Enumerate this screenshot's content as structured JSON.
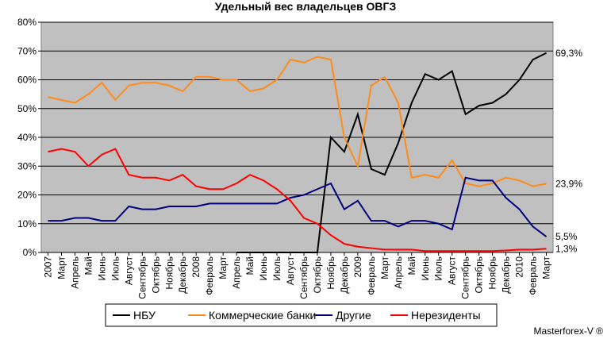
{
  "chart_data": {
    "type": "line",
    "title": "Удельный вес владельцев ОВГЗ",
    "source": "Masterforex-V ®",
    "categories": [
      "2007",
      "Март",
      "Апрель",
      "Май",
      "Июнь",
      "Июль",
      "Август",
      "Сентябрь",
      "Октябрь",
      "Ноябрь",
      "Декабрь",
      "2008",
      "Февраль",
      "Март",
      "Апрель",
      "Май",
      "Июнь",
      "Июль",
      "Август",
      "Сентябрь",
      "Октябрь",
      "Ноябрь",
      "Декабрь",
      "2009",
      "Февраль",
      "Март",
      "Апрель",
      "Май",
      "Июнь",
      "Июль",
      "Август",
      "Сентябрь",
      "Октябрь",
      "Ноябрь",
      "Декабрь",
      "2010",
      "Февраль",
      "Март"
    ],
    "series": [
      {
        "name": "НБУ",
        "color": "#000000",
        "values": [
          null,
          null,
          null,
          null,
          null,
          null,
          null,
          null,
          null,
          null,
          null,
          null,
          null,
          null,
          0,
          0,
          0,
          0,
          0,
          0,
          0,
          40,
          35,
          48,
          29,
          27,
          38,
          52,
          62,
          60,
          63,
          48,
          51,
          52,
          55,
          60,
          67,
          69.3
        ],
        "value_labels": [
          null,
          null,
          null,
          null,
          null,
          null,
          null,
          null,
          null,
          null,
          null,
          null,
          null,
          null,
          null,
          null,
          null,
          null,
          null,
          null,
          null,
          null,
          null,
          null,
          null,
          null,
          null,
          null,
          null,
          null,
          null,
          null,
          null,
          null,
          null,
          null,
          null,
          "69,3%"
        ]
      },
      {
        "name": "Коммерческие банки",
        "color": "#ff8c1a",
        "values": [
          54,
          53,
          52,
          55,
          59,
          53,
          58,
          59,
          59,
          58,
          56,
          61,
          61,
          60,
          60,
          56,
          57,
          60,
          67,
          66,
          68,
          67,
          40,
          30,
          58,
          61,
          52,
          26,
          27,
          26,
          32,
          24,
          23,
          24,
          26,
          25,
          23,
          23.9
        ],
        "value_labels": [
          null,
          null,
          null,
          null,
          null,
          null,
          null,
          null,
          null,
          null,
          null,
          null,
          null,
          null,
          null,
          null,
          null,
          null,
          null,
          null,
          null,
          null,
          null,
          null,
          null,
          null,
          null,
          null,
          null,
          null,
          null,
          null,
          null,
          null,
          null,
          null,
          null,
          "23,9%"
        ]
      },
      {
        "name": "Другие",
        "color": "#000080",
        "values": [
          11,
          11,
          12,
          12,
          11,
          11,
          16,
          15,
          15,
          16,
          16,
          16,
          17,
          17,
          17,
          17,
          17,
          17,
          19,
          20,
          22,
          24,
          15,
          18,
          11,
          11,
          9,
          11,
          11,
          10,
          8,
          26,
          25,
          25,
          19,
          15,
          9,
          5.5
        ],
        "value_labels": [
          null,
          null,
          null,
          null,
          null,
          null,
          null,
          null,
          null,
          null,
          null,
          null,
          null,
          null,
          null,
          null,
          null,
          null,
          null,
          null,
          null,
          null,
          null,
          null,
          null,
          null,
          null,
          null,
          null,
          null,
          null,
          null,
          null,
          null,
          null,
          null,
          null,
          "5,5%"
        ]
      },
      {
        "name": "Нерезиденты",
        "color": "#ff0000",
        "values": [
          35,
          36,
          35,
          30,
          34,
          36,
          27,
          26,
          26,
          25,
          27,
          23,
          22,
          22,
          24,
          27,
          25,
          22,
          18,
          12,
          10,
          6,
          3,
          2,
          1.5,
          1,
          1,
          1,
          0.5,
          0.5,
          0.5,
          0.5,
          0.5,
          0.5,
          0.7,
          1,
          1,
          1.3
        ],
        "value_labels": [
          null,
          null,
          null,
          null,
          null,
          null,
          null,
          null,
          null,
          null,
          null,
          null,
          null,
          null,
          null,
          null,
          null,
          null,
          null,
          null,
          null,
          null,
          null,
          null,
          null,
          null,
          null,
          null,
          null,
          null,
          null,
          null,
          null,
          null,
          null,
          null,
          null,
          "1,3%"
        ]
      }
    ],
    "ylim": [
      0,
      80
    ],
    "yticks": [
      {
        "value": 0,
        "label": "0%"
      },
      {
        "value": 10,
        "label": "10%"
      },
      {
        "value": 20,
        "label": "20%"
      },
      {
        "value": 30,
        "label": "30%"
      },
      {
        "value": 40,
        "label": "40%"
      },
      {
        "value": 50,
        "label": "50%"
      },
      {
        "value": 60,
        "label": "60%"
      },
      {
        "value": 70,
        "label": "70%"
      },
      {
        "value": 80,
        "label": "80%"
      }
    ],
    "grid": true,
    "legend": "bottom"
  }
}
